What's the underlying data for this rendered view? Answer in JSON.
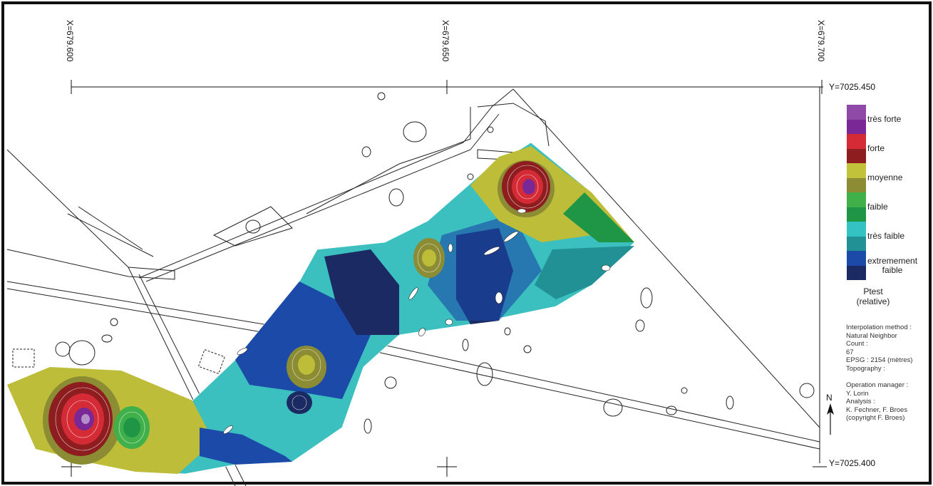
{
  "map": {
    "x_labels": [
      "X=679.600",
      "X=679.650",
      "X=679.700"
    ],
    "y_top": "Y=7025.450",
    "y_bottom": "Y=7025.400",
    "north": "N"
  },
  "legend": {
    "classes": [
      {
        "label": "très forte",
        "colors": [
          "#8e4aa6",
          "#7a2896"
        ]
      },
      {
        "label": "forte",
        "colors": [
          "#d52b36",
          "#8e1d20"
        ]
      },
      {
        "label": "moyenne",
        "colors": [
          "#c2c23a",
          "#8c8c35"
        ]
      },
      {
        "label": "faible",
        "colors": [
          "#40b04a",
          "#1f9645"
        ]
      },
      {
        "label": "très faible",
        "colors": [
          "#35c2c2",
          "#219195"
        ]
      },
      {
        "label": "extremement faible",
        "colors": [
          "#1b4aa8",
          "#1b2a63"
        ]
      }
    ],
    "extremement_1": "extremement",
    "extremement_2": "faible",
    "title": "Ptest",
    "subtitle": "(relative)"
  },
  "info": {
    "lines": [
      "Interpolation method :",
      "Natural Neighbor",
      "Count :",
      "67",
      "EPSG : 2154 (mètres)",
      "Topography :"
    ],
    "credits": [
      "Operation manager :",
      "Y. Lorin",
      "Analysis :",
      "K. Fechner, F. Broes",
      "(copyright F. Broes)"
    ]
  }
}
